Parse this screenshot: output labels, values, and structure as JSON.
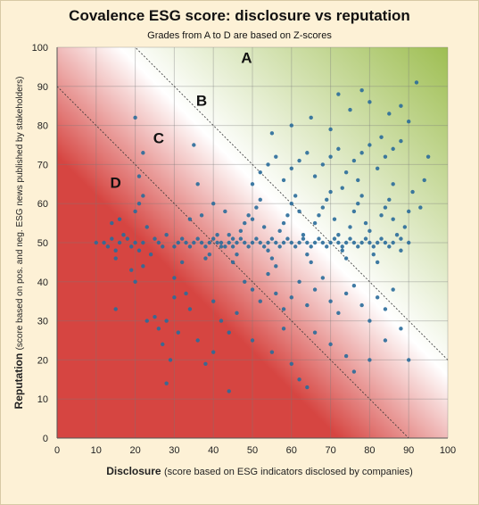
{
  "chart_data": {
    "type": "scatter",
    "title": "Covalence ESG score: disclosure vs reputation",
    "subtitle": "Grades from A to D  are based on Z-scores",
    "xlabel": {
      "bold": "Disclosure",
      "rest": "(score based on ESG indicators disclosed by companies)"
    },
    "ylabel": {
      "bold": "Reputation",
      "rest": "(score based on pos. and neg. ESG news published by stakeholders)"
    },
    "xlim": [
      0,
      100
    ],
    "ylim": [
      0,
      100
    ],
    "x_ticks": [
      "0",
      "10",
      "20",
      "30",
      "40",
      "50",
      "60",
      "70",
      "80",
      "90",
      "100"
    ],
    "y_ticks": [
      "0",
      "10",
      "20",
      "30",
      "40",
      "50",
      "60",
      "70",
      "80",
      "90",
      "100"
    ],
    "grid": true,
    "legend": "none",
    "point_color": "#2a6c9a",
    "background_gradient": {
      "low_color": "#d64541",
      "mid_color": "#ffffff",
      "high_color": "#9ebe52"
    },
    "grade_lines": [
      {
        "intercept": 120,
        "slope": -1
      },
      {
        "intercept": 90,
        "slope": -1
      }
    ],
    "grades": [
      {
        "label": "A",
        "x": 48.5,
        "y": 96
      },
      {
        "label": "B",
        "x": 37,
        "y": 85
      },
      {
        "label": "C",
        "x": 26,
        "y": 75.5
      },
      {
        "label": "D",
        "x": 15,
        "y": 64
      }
    ],
    "points": [
      [
        10,
        50
      ],
      [
        12,
        50
      ],
      [
        13,
        49
      ],
      [
        14,
        51
      ],
      [
        15,
        48
      ],
      [
        16,
        50
      ],
      [
        18,
        51
      ],
      [
        19,
        49
      ],
      [
        20,
        50
      ],
      [
        22,
        50
      ],
      [
        21,
        48
      ],
      [
        17,
        52
      ],
      [
        15,
        46
      ],
      [
        14,
        55
      ],
      [
        16,
        56
      ],
      [
        20,
        58
      ],
      [
        21,
        60
      ],
      [
        22,
        62
      ],
      [
        23,
        54
      ],
      [
        25,
        51
      ],
      [
        26,
        50
      ],
      [
        27,
        49
      ],
      [
        28,
        52
      ],
      [
        24,
        47
      ],
      [
        22,
        44
      ],
      [
        20,
        40
      ],
      [
        19,
        43
      ],
      [
        15,
        33
      ],
      [
        20,
        82
      ],
      [
        21,
        67
      ],
      [
        22,
        73
      ],
      [
        23,
        30
      ],
      [
        25,
        31
      ],
      [
        26,
        28
      ],
      [
        27,
        24
      ],
      [
        28,
        14
      ],
      [
        29,
        20
      ],
      [
        30,
        41
      ],
      [
        31,
        27
      ],
      [
        32,
        45
      ],
      [
        33,
        37
      ],
      [
        34,
        56
      ],
      [
        35,
        75
      ],
      [
        36,
        65
      ],
      [
        37,
        57
      ],
      [
        38,
        46
      ],
      [
        39,
        47
      ],
      [
        40,
        60
      ],
      [
        41,
        52
      ],
      [
        42,
        49
      ],
      [
        43,
        58
      ],
      [
        44,
        52
      ],
      [
        45,
        51
      ],
      [
        30,
        49
      ],
      [
        31,
        50
      ],
      [
        32,
        51
      ],
      [
        33,
        50
      ],
      [
        34,
        49
      ],
      [
        35,
        50
      ],
      [
        36,
        51
      ],
      [
        37,
        50
      ],
      [
        38,
        49
      ],
      [
        39,
        50
      ],
      [
        40,
        51
      ],
      [
        41,
        50
      ],
      [
        42,
        50
      ],
      [
        43,
        49
      ],
      [
        44,
        50
      ],
      [
        45,
        49
      ],
      [
        46,
        50
      ],
      [
        47,
        51
      ],
      [
        48,
        50
      ],
      [
        49,
        49
      ],
      [
        50,
        50
      ],
      [
        51,
        51
      ],
      [
        52,
        50
      ],
      [
        53,
        49
      ],
      [
        54,
        50
      ],
      [
        55,
        51
      ],
      [
        56,
        50
      ],
      [
        57,
        49
      ],
      [
        58,
        50
      ],
      [
        59,
        51
      ],
      [
        60,
        50
      ],
      [
        61,
        49
      ],
      [
        62,
        50
      ],
      [
        63,
        51
      ],
      [
        64,
        50
      ],
      [
        65,
        49
      ],
      [
        66,
        50
      ],
      [
        67,
        51
      ],
      [
        68,
        50
      ],
      [
        69,
        49
      ],
      [
        70,
        50
      ],
      [
        71,
        51
      ],
      [
        72,
        50
      ],
      [
        73,
        49
      ],
      [
        74,
        50
      ],
      [
        75,
        51
      ],
      [
        76,
        50
      ],
      [
        77,
        49
      ],
      [
        78,
        50
      ],
      [
        79,
        51
      ],
      [
        80,
        50
      ],
      [
        81,
        49
      ],
      [
        82,
        50
      ],
      [
        83,
        51
      ],
      [
        84,
        50
      ],
      [
        85,
        49
      ],
      [
        86,
        50
      ],
      [
        88,
        51
      ],
      [
        90,
        50
      ],
      [
        45,
        45
      ],
      [
        46,
        47
      ],
      [
        47,
        53
      ],
      [
        48,
        55
      ],
      [
        49,
        57
      ],
      [
        50,
        56
      ],
      [
        51,
        59
      ],
      [
        52,
        61
      ],
      [
        53,
        54
      ],
      [
        54,
        48
      ],
      [
        55,
        46
      ],
      [
        56,
        44
      ],
      [
        57,
        53
      ],
      [
        58,
        55
      ],
      [
        59,
        57
      ],
      [
        60,
        60
      ],
      [
        61,
        62
      ],
      [
        62,
        58
      ],
      [
        63,
        52
      ],
      [
        64,
        47
      ],
      [
        65,
        45
      ],
      [
        66,
        55
      ],
      [
        67,
        57
      ],
      [
        68,
        59
      ],
      [
        69,
        61
      ],
      [
        70,
        63
      ],
      [
        71,
        56
      ],
      [
        72,
        52
      ],
      [
        73,
        48
      ],
      [
        74,
        46
      ],
      [
        75,
        54
      ],
      [
        76,
        58
      ],
      [
        77,
        60
      ],
      [
        78,
        62
      ],
      [
        79,
        55
      ],
      [
        80,
        53
      ],
      [
        81,
        47
      ],
      [
        82,
        45
      ],
      [
        83,
        57
      ],
      [
        84,
        59
      ],
      [
        85,
        61
      ],
      [
        86,
        56
      ],
      [
        87,
        52
      ],
      [
        88,
        48
      ],
      [
        89,
        54
      ],
      [
        90,
        58
      ],
      [
        50,
        65
      ],
      [
        52,
        68
      ],
      [
        54,
        70
      ],
      [
        56,
        72
      ],
      [
        58,
        66
      ],
      [
        60,
        69
      ],
      [
        62,
        71
      ],
      [
        64,
        73
      ],
      [
        66,
        67
      ],
      [
        68,
        70
      ],
      [
        70,
        72
      ],
      [
        72,
        74
      ],
      [
        74,
        68
      ],
      [
        76,
        71
      ],
      [
        78,
        73
      ],
      [
        80,
        75
      ],
      [
        82,
        69
      ],
      [
        84,
        72
      ],
      [
        86,
        74
      ],
      [
        88,
        76
      ],
      [
        55,
        78
      ],
      [
        60,
        80
      ],
      [
        65,
        82
      ],
      [
        70,
        79
      ],
      [
        75,
        84
      ],
      [
        80,
        86
      ],
      [
        85,
        83
      ],
      [
        90,
        81
      ],
      [
        72,
        88
      ],
      [
        78,
        89
      ],
      [
        92,
        91
      ],
      [
        88,
        85
      ],
      [
        95,
        72
      ],
      [
        94,
        66
      ],
      [
        91,
        63
      ],
      [
        93,
        59
      ],
      [
        86,
        65
      ],
      [
        83,
        77
      ],
      [
        77,
        66
      ],
      [
        73,
        64
      ],
      [
        48,
        40
      ],
      [
        50,
        38
      ],
      [
        52,
        35
      ],
      [
        54,
        42
      ],
      [
        56,
        37
      ],
      [
        58,
        33
      ],
      [
        60,
        36
      ],
      [
        62,
        40
      ],
      [
        64,
        34
      ],
      [
        66,
        38
      ],
      [
        68,
        41
      ],
      [
        70,
        35
      ],
      [
        72,
        32
      ],
      [
        74,
        37
      ],
      [
        76,
        39
      ],
      [
        78,
        34
      ],
      [
        80,
        30
      ],
      [
        82,
        36
      ],
      [
        84,
        33
      ],
      [
        86,
        38
      ],
      [
        40,
        35
      ],
      [
        42,
        30
      ],
      [
        44,
        27
      ],
      [
        46,
        32
      ],
      [
        50,
        25
      ],
      [
        55,
        22
      ],
      [
        60,
        19
      ],
      [
        62,
        15
      ],
      [
        64,
        13
      ],
      [
        58,
        28
      ],
      [
        66,
        27
      ],
      [
        70,
        24
      ],
      [
        74,
        21
      ],
      [
        76,
        17
      ],
      [
        80,
        20
      ],
      [
        84,
        25
      ],
      [
        88,
        28
      ],
      [
        90,
        20
      ],
      [
        34,
        33
      ],
      [
        36,
        25
      ],
      [
        38,
        19
      ],
      [
        40,
        22
      ],
      [
        44,
        12
      ],
      [
        30,
        36
      ],
      [
        28,
        30
      ]
    ]
  }
}
